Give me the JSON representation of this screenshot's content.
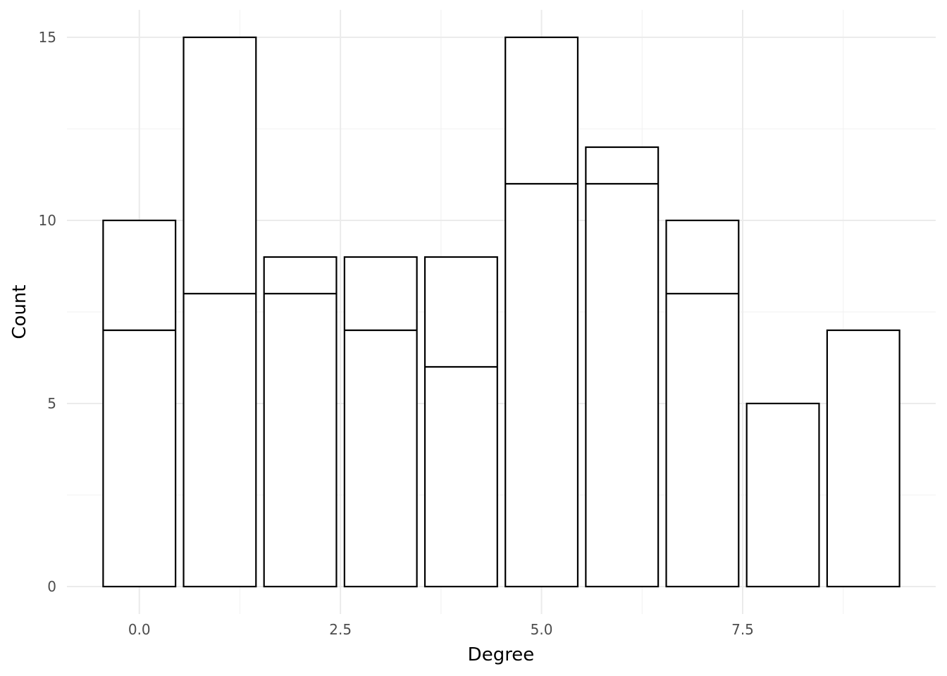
{
  "chart_data": {
    "type": "bar",
    "subtype": "stacked-histogram",
    "xlabel": "Degree",
    "ylabel": "Count",
    "x": [
      0,
      1,
      2,
      3,
      4,
      5,
      6,
      7,
      8,
      9
    ],
    "totals": [
      10,
      15,
      9,
      9,
      9,
      15,
      12,
      10,
      5,
      7
    ],
    "lower_segment": [
      7,
      8,
      8,
      7,
      6,
      11,
      11,
      8,
      5,
      7
    ],
    "bar_width": 0.9,
    "xlim": [
      -0.9,
      9.9
    ],
    "ylim": [
      -0.75,
      15.75
    ],
    "x_ticks": [
      0,
      2.5,
      5,
      7.5
    ],
    "x_tick_labels": [
      "0.0",
      "2.5",
      "5.0",
      "7.5"
    ],
    "y_ticks": [
      0,
      5,
      10,
      15
    ],
    "y_tick_labels": [
      "0",
      "5",
      "10",
      "15"
    ],
    "x_minor_ticks": [
      1.25,
      3.75,
      6.25,
      8.75
    ],
    "y_minor_ticks": [
      2.5,
      7.5,
      12.5
    ],
    "fill_color": "#ffffff",
    "outline_color": "#000000",
    "grid": true,
    "legend": "none"
  }
}
